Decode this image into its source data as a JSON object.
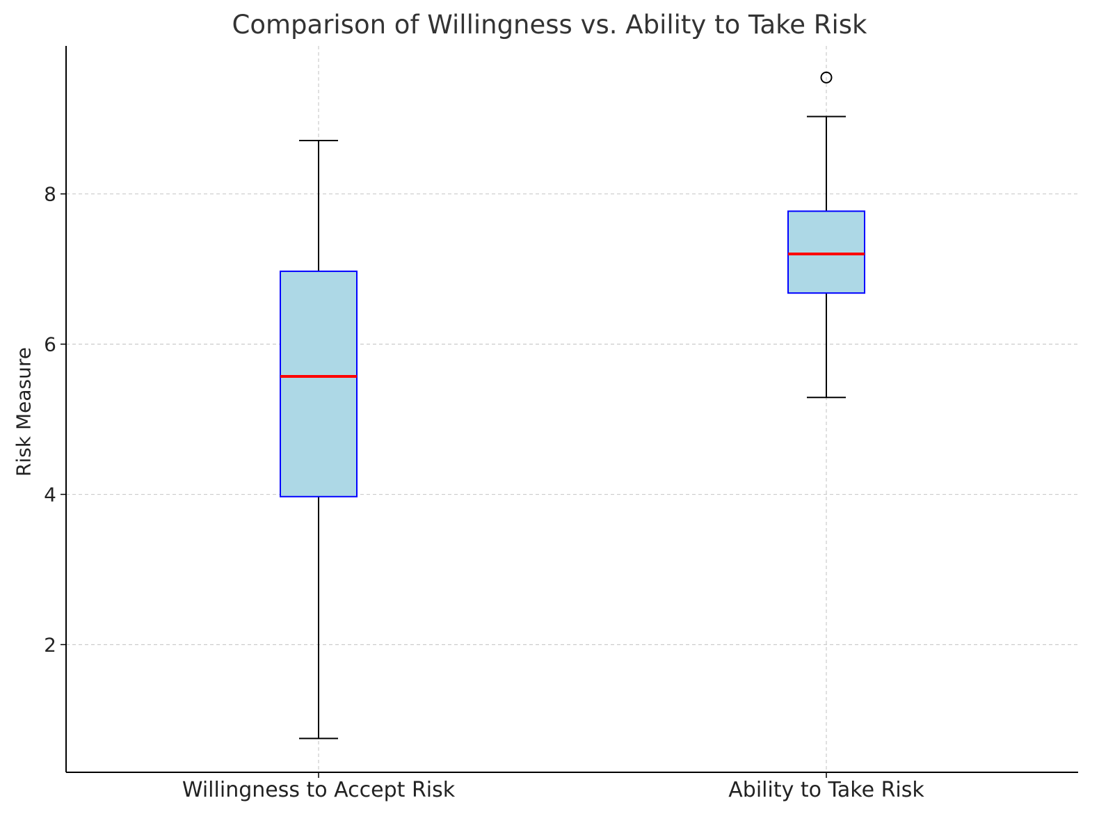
{
  "chart_data": {
    "type": "box",
    "title": "Comparison of Willingness vs. Ability to Take Risk",
    "xlabel": "",
    "ylabel": "Risk Measure",
    "ylim": [
      0.3,
      9.97
    ],
    "yticks": [
      2,
      4,
      6,
      8
    ],
    "grid": true,
    "categories": [
      "Willingness to Accept Risk",
      "Ability to Take Risk"
    ],
    "boxes": [
      {
        "category": "Willingness to Accept Risk",
        "whisker_low": 0.75,
        "q1": 3.97,
        "median": 5.57,
        "q3": 6.97,
        "whisker_high": 8.71,
        "outliers": []
      },
      {
        "category": "Ability to Take Risk",
        "whisker_low": 5.29,
        "q1": 6.68,
        "median": 7.2,
        "q3": 7.77,
        "whisker_high": 9.03,
        "outliers": [
          9.55
        ]
      }
    ],
    "colors": {
      "box_fill": "#add8e6",
      "box_edge": "#0000ff",
      "median": "#ff0000",
      "whisker": "#000000",
      "grid": "#cccccc"
    }
  }
}
